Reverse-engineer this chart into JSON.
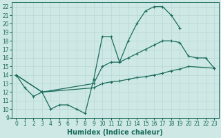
{
  "xlabel": "Humidex (Indice chaleur)",
  "line1_x": [
    0,
    1,
    2,
    3,
    4,
    5,
    6,
    7,
    8,
    9,
    10,
    11,
    12,
    13,
    14,
    15,
    16,
    17,
    18,
    19
  ],
  "line1_y": [
    14,
    12.5,
    11.5,
    12,
    10,
    10.5,
    10.5,
    10,
    9.5,
    13.5,
    18.5,
    18.5,
    15.5,
    18,
    20,
    21.5,
    22,
    22,
    21,
    19.5
  ],
  "line2_x": [
    0,
    3,
    9,
    10,
    11,
    12,
    13,
    14,
    15,
    16,
    17,
    18,
    19,
    20,
    21,
    22,
    23
  ],
  "line2_y": [
    14,
    12,
    13,
    15,
    15.5,
    15.5,
    16,
    16.5,
    17,
    17.5,
    18,
    18,
    17.8,
    16.2,
    16,
    16,
    14.8
  ],
  "line3_x": [
    0,
    3,
    9,
    10,
    11,
    12,
    13,
    14,
    15,
    16,
    17,
    18,
    19,
    20,
    23
  ],
  "line3_y": [
    14,
    12,
    12.5,
    13,
    13.2,
    13.3,
    13.5,
    13.7,
    13.8,
    14,
    14.2,
    14.5,
    14.7,
    15,
    14.8
  ],
  "ylim": [
    9,
    22.5
  ],
  "xlim": [
    -0.5,
    23.5
  ],
  "bg_color": "#cde8e5",
  "line_color": "#1a6b5a",
  "grid_color": "#b8d8d4",
  "tick_fontsize": 5.5,
  "label_fontsize": 7.0
}
